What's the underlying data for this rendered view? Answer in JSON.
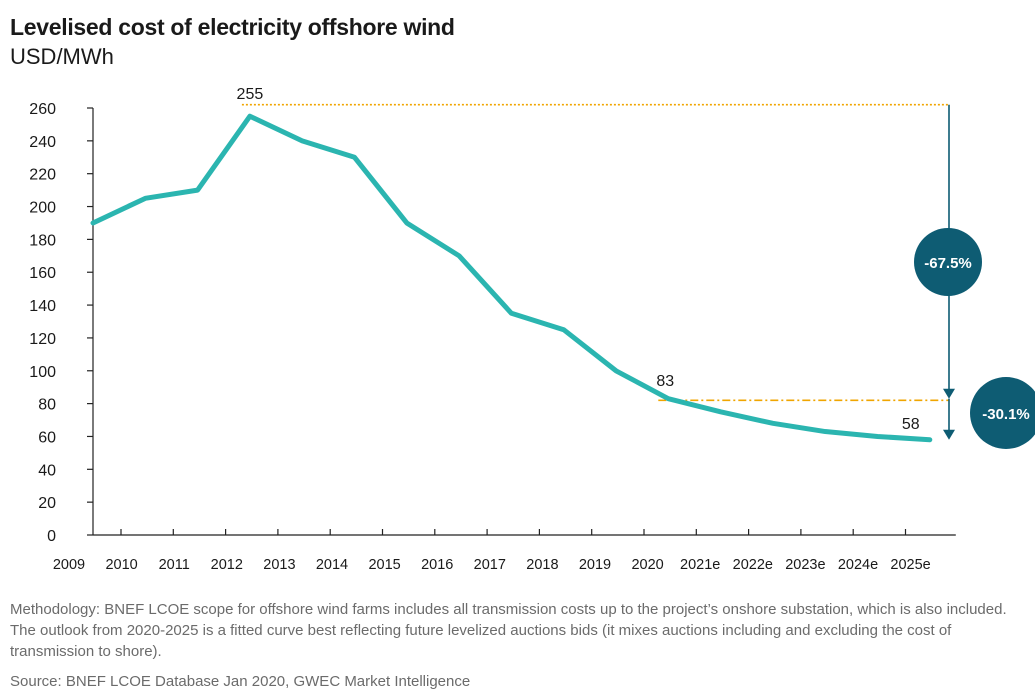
{
  "chart_data": {
    "type": "line",
    "title": "Levelised cost of electricity offshore wind",
    "ylabel": "USD/MWh",
    "xlabel": "",
    "categories": [
      "2009",
      "2010",
      "2011",
      "2012",
      "2013",
      "2014",
      "2015",
      "2016",
      "2017",
      "2018",
      "2019",
      "2020",
      "2021e",
      "2022e",
      "2023e",
      "2024e",
      "2025e"
    ],
    "series": [
      {
        "values": [
          190,
          205,
          210,
          255,
          240,
          230,
          190,
          170,
          135,
          125,
          100,
          83,
          75,
          68,
          63,
          60,
          58
        ],
        "color": "#2bb5b0"
      }
    ],
    "ylim": [
      0,
      260
    ],
    "yticks": [
      0,
      20,
      40,
      60,
      80,
      100,
      120,
      140,
      160,
      180,
      200,
      220,
      240,
      260
    ],
    "grid": false,
    "data_labels": [
      {
        "category": "2012",
        "value": 255,
        "text": "255"
      },
      {
        "category": "2020",
        "value": 83,
        "text": "83"
      },
      {
        "category": "2025e",
        "value": 58,
        "text": "58"
      }
    ],
    "annotations": [
      {
        "text": "-67.5%",
        "from": 255,
        "to": 83,
        "color": "#0e5c73"
      },
      {
        "text": "-30.1%",
        "from": 83,
        "to": 58,
        "color": "#0e5c73"
      }
    ],
    "reference_line_color": "#f0a500"
  },
  "footer": {
    "methodology": "Methodology: BNEF LCOE scope for offshore wind farms includes all transmission costs up to the project’s onshore substation, which is also included. The outlook from 2020-2025 is a fitted curve best reflecting future levelized auctions bids (it mixes auctions including and excluding the cost of transmission to shore).",
    "source": "Source: BNEF LCOE Database Jan 2020, GWEC Market Intelligence"
  }
}
